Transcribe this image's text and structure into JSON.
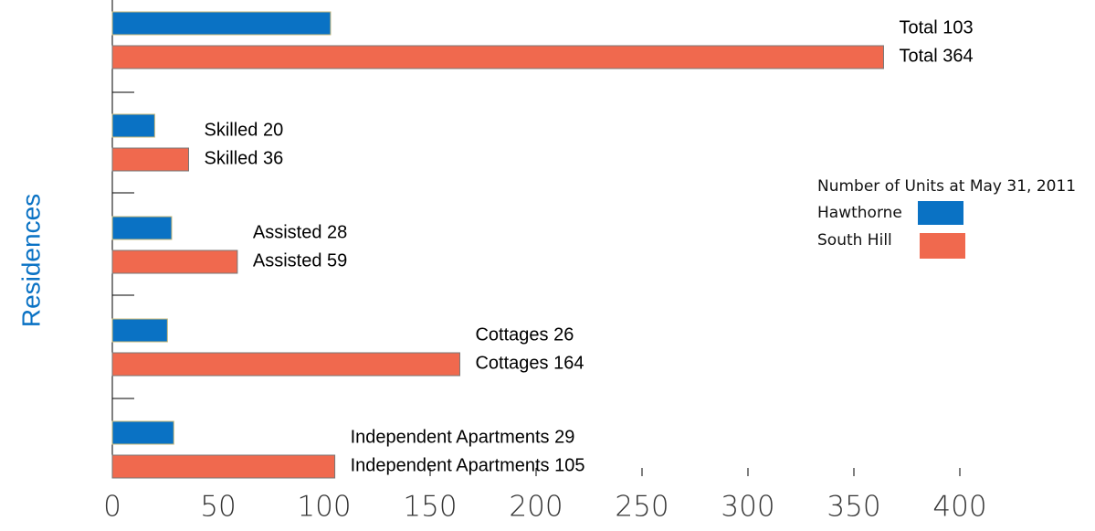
{
  "chart_data": {
    "type": "barh",
    "y_axis_label": "Residences",
    "legend_title": "Number of Units at May 31, 2011",
    "series": [
      {
        "name": "Hawthorne",
        "color": "#0a72c4",
        "values": [
          103,
          20,
          28,
          26,
          29
        ],
        "value_labels": [
          "Total  103",
          "Skilled 20",
          "Assisted 28",
          "Cottages 26",
          "Independent Apartments 29"
        ]
      },
      {
        "name": "South Hill",
        "color": "#f0694e",
        "values": [
          364,
          36,
          59,
          164,
          105
        ],
        "value_labels": [
          "Total  364",
          "Skilled 36",
          "Assisted 59",
          "Cottages 164",
          "Independent Apartments 105"
        ]
      }
    ],
    "xlim": [
      0,
      400
    ],
    "xticks": [
      0,
      50,
      100,
      150,
      200,
      250,
      300,
      350,
      400
    ]
  }
}
